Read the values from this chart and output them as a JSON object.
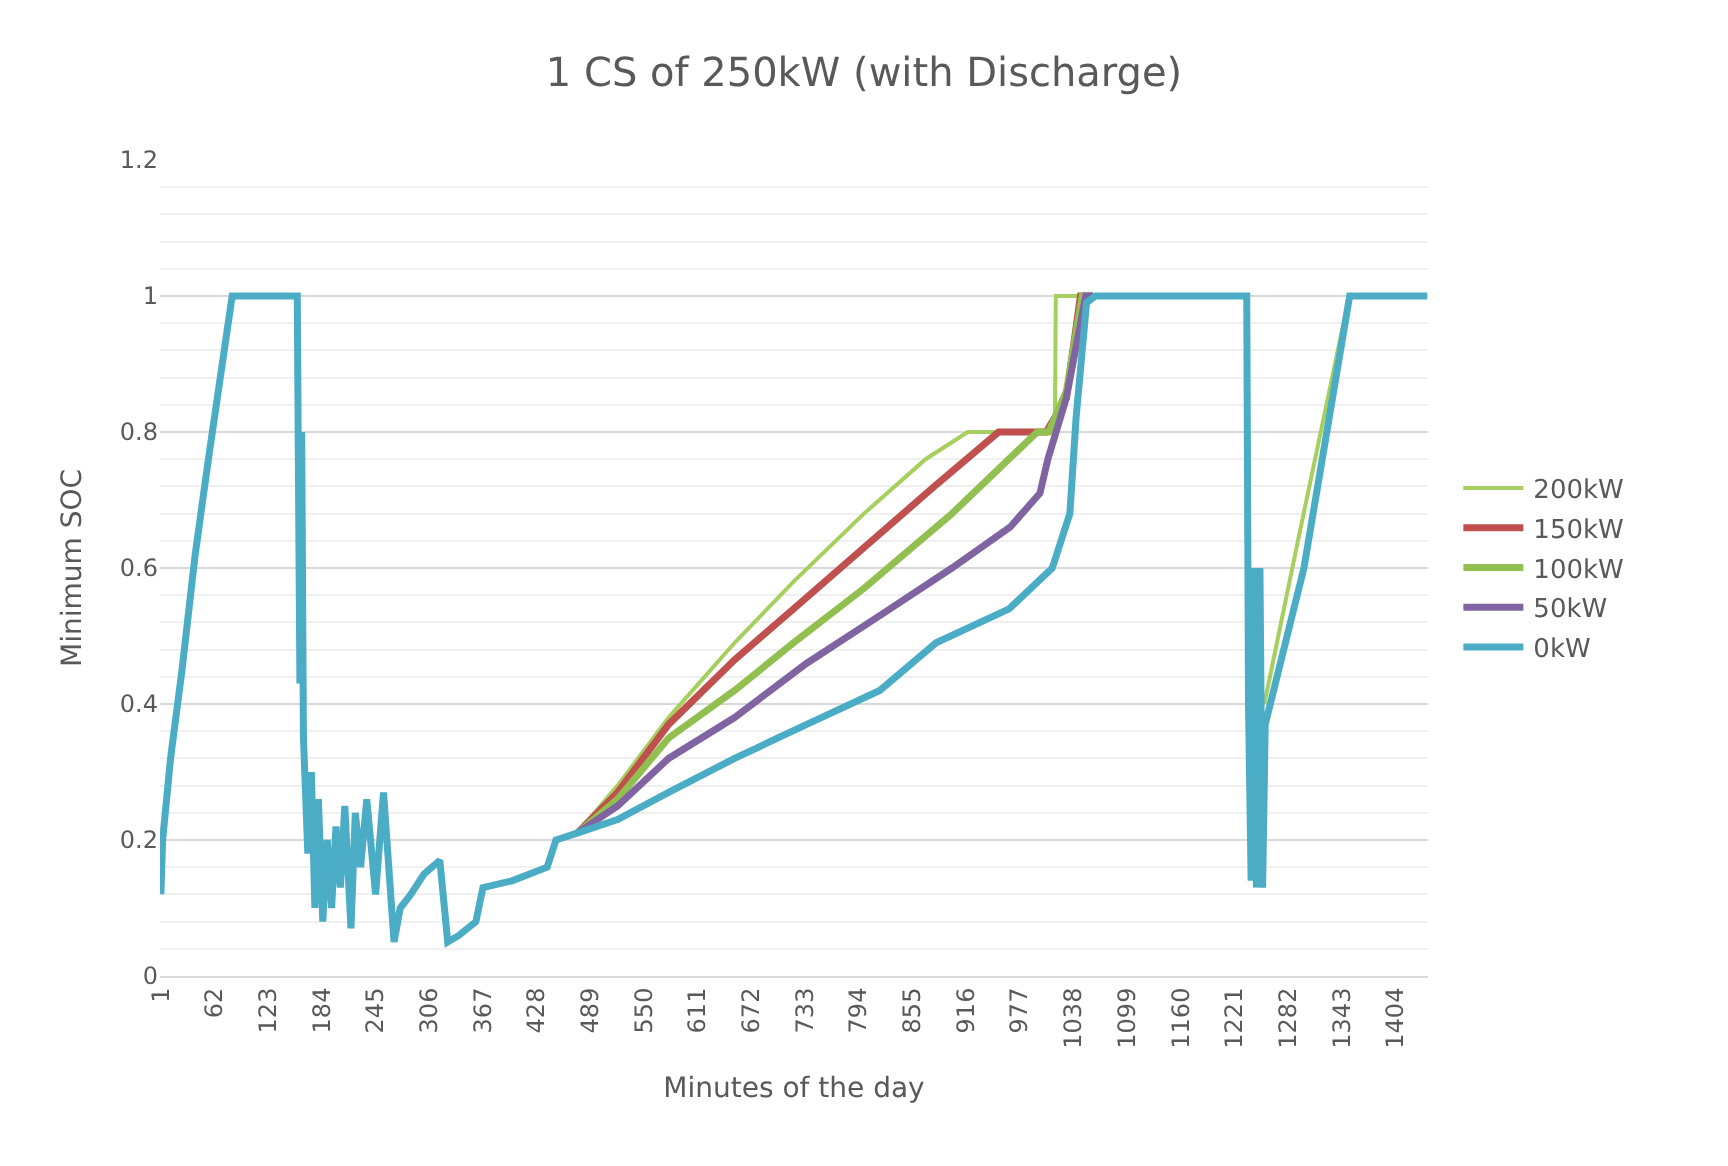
{
  "chart_data": {
    "type": "line",
    "title": "1 CS of 250kW (with Discharge)",
    "xlabel": "Minutes of the day",
    "ylabel": "Minimum SOC",
    "xlim": [
      0,
      1441
    ],
    "xticks": [
      1,
      62,
      123,
      184,
      245,
      306,
      367,
      428,
      489,
      550,
      611,
      672,
      733,
      794,
      855,
      916,
      977,
      1038,
      1099,
      1160,
      1221,
      1282,
      1343,
      1404
    ],
    "ylim": [
      0,
      1.2
    ],
    "yticks": [
      0,
      0.2,
      0.4,
      0.6,
      0.8,
      1,
      1.2
    ],
    "grid": "y",
    "legend": "right",
    "marker": "none",
    "line_style": "solid",
    "series": [
      {
        "name": "200kW",
        "color": "#a6cf5e",
        "x": [
          474,
          520,
          578,
          653,
          720,
          800,
          870,
          918,
          1017,
          1018,
          1022,
          1060,
          1250,
          1255,
          1290,
          1345
        ],
        "values": [
          0.21,
          0.28,
          0.38,
          0.49,
          0.58,
          0.68,
          0.76,
          0.8,
          0.8,
          1,
          1,
          1,
          null,
          0.4,
          0.62,
          0.96
        ]
      },
      {
        "name": "150kW",
        "color": "#c0504d",
        "x": [
          474,
          520,
          578,
          653,
          720,
          800,
          880,
          953,
          1007,
          1030,
          1046,
          1060
        ],
        "values": [
          0.21,
          0.27,
          0.37,
          0.465,
          0.54,
          0.63,
          0.72,
          0.8,
          0.8,
          0.85,
          1,
          1
        ]
      },
      {
        "name": "100kW",
        "color": "#92c050",
        "x": [
          474,
          520,
          578,
          653,
          720,
          800,
          900,
          997,
          1010,
          1030,
          1048,
          1060
        ],
        "values": [
          0.21,
          0.26,
          0.35,
          0.42,
          0.49,
          0.57,
          0.68,
          0.8,
          0.8,
          0.86,
          1,
          1
        ]
      },
      {
        "name": "50kW",
        "color": "#8064a2",
        "x": [
          474,
          520,
          578,
          653,
          735,
          818,
          900,
          966,
          1000,
          1009,
          1030,
          1052,
          1060
        ],
        "values": [
          0.21,
          0.25,
          0.32,
          0.38,
          0.46,
          0.53,
          0.6,
          0.66,
          0.71,
          0.76,
          0.85,
          1,
          1
        ]
      },
      {
        "name": "0kW",
        "color": "#4bacc6",
        "x": [
          1,
          3,
          12,
          25,
          40,
          55,
          82,
          156,
          157,
          159,
          161,
          163,
          168,
          172,
          176,
          180,
          185,
          190,
          195,
          200,
          205,
          210,
          217,
          222,
          228,
          235,
          245,
          254,
          266,
          273,
          285,
          300,
          318,
          327,
          340,
          359,
          367,
          400,
          440,
          450,
          474,
          520,
          578,
          653,
          735,
          818,
          882,
          965,
          1014,
          1034,
          1041,
          1053,
          1063,
          1235,
          1237,
          1240,
          1243,
          1246,
          1250,
          1253,
          1256,
          1300,
          1352,
          1440
        ],
        "values": [
          0.12,
          0.2,
          0.32,
          0.45,
          0.62,
          0.76,
          1,
          1,
          0.8,
          0.43,
          0.8,
          0.35,
          0.18,
          0.3,
          0.1,
          0.26,
          0.08,
          0.2,
          0.1,
          0.22,
          0.13,
          0.25,
          0.07,
          0.24,
          0.16,
          0.26,
          0.12,
          0.27,
          0.05,
          0.1,
          0.12,
          0.15,
          0.17,
          0.05,
          0.06,
          0.08,
          0.13,
          0.14,
          0.16,
          0.2,
          0.21,
          0.23,
          0.27,
          0.32,
          0.37,
          0.42,
          0.49,
          0.54,
          0.6,
          0.68,
          0.82,
          0.99,
          1,
          1,
          0.4,
          0.14,
          0.6,
          0.13,
          0.6,
          0.13,
          0.37,
          0.6,
          1,
          1
        ]
      }
    ]
  }
}
